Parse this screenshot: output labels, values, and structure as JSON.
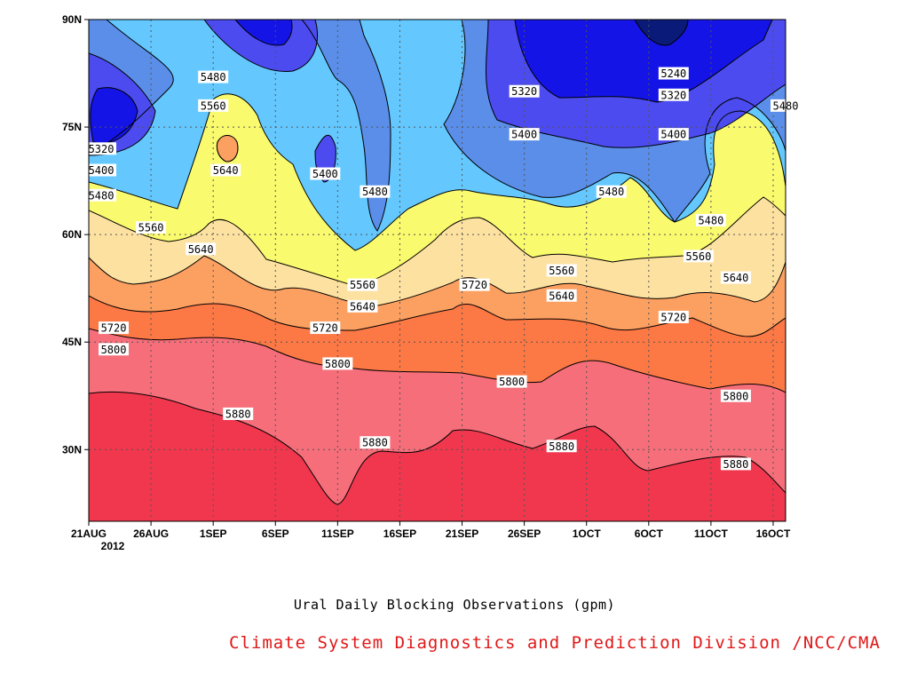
{
  "chart_data": {
    "type": "contour",
    "title": "Ural Daily Blocking Observations (gpm)",
    "credit": "Climate System Diagnostics and Prediction Division /NCC/CMA",
    "xlabel": "",
    "ylabel": "",
    "x_ticks": [
      "21AUG",
      "26AUG",
      "1SEP",
      "6SEP",
      "11SEP",
      "16SEP",
      "21SEP",
      "26SEP",
      "1OCT",
      "6OCT",
      "11OCT",
      "16OCT"
    ],
    "x_year": "2012",
    "x_range": [
      "2012-08-21",
      "2012-10-16"
    ],
    "y_ticks": [
      "30N",
      "45N",
      "60N",
      "75N",
      "90N"
    ],
    "y_range": [
      20,
      90
    ],
    "grid": true,
    "levels": [
      5240,
      5320,
      5400,
      5480,
      5560,
      5640,
      5720,
      5800,
      5880
    ],
    "fill_colors": [
      "#0a1a78",
      "#1414e6",
      "#4b4bef",
      "#5a8ee8",
      "#64c8ff",
      "#fafa6e",
      "#fde1a0",
      "#fca062",
      "#fc7845",
      "#f56e7a",
      "#f0374e"
    ],
    "contour_labels": [
      {
        "text": "5480",
        "date": "2012-08-31",
        "lat": 82
      },
      {
        "text": "5560",
        "date": "2012-08-31",
        "lat": 78
      },
      {
        "text": "5640",
        "date": "2012-09-01",
        "lat": 69
      },
      {
        "text": "5320",
        "date": "2012-08-22",
        "lat": 72
      },
      {
        "text": "5400",
        "date": "2012-08-22",
        "lat": 69
      },
      {
        "text": "5480",
        "date": "2012-08-22",
        "lat": 65.5
      },
      {
        "text": "5560",
        "date": "2012-08-26",
        "lat": 61
      },
      {
        "text": "5640",
        "date": "2012-08-30",
        "lat": 58
      },
      {
        "text": "5720",
        "date": "2012-08-23",
        "lat": 47
      },
      {
        "text": "5800",
        "date": "2012-08-23",
        "lat": 44
      },
      {
        "text": "5880",
        "date": "2012-09-02",
        "lat": 35
      },
      {
        "text": "5400",
        "date": "2012-09-09",
        "lat": 68.5
      },
      {
        "text": "5480",
        "date": "2012-09-13",
        "lat": 66
      },
      {
        "text": "5560",
        "date": "2012-09-12",
        "lat": 53
      },
      {
        "text": "5640",
        "date": "2012-09-12",
        "lat": 50
      },
      {
        "text": "5720",
        "date": "2012-09-09",
        "lat": 47
      },
      {
        "text": "5800",
        "date": "2012-09-10",
        "lat": 42
      },
      {
        "text": "5880",
        "date": "2012-09-13",
        "lat": 31
      },
      {
        "text": "5720",
        "date": "2012-09-21",
        "lat": 53
      },
      {
        "text": "5800",
        "date": "2012-09-24",
        "lat": 39.5
      },
      {
        "text": "5880",
        "date": "2012-09-28",
        "lat": 30.5
      },
      {
        "text": "5560",
        "date": "2012-09-28",
        "lat": 55
      },
      {
        "text": "5640",
        "date": "2012-09-28",
        "lat": 51.5
      },
      {
        "text": "5320",
        "date": "2012-09-25",
        "lat": 80
      },
      {
        "text": "5400",
        "date": "2012-09-25",
        "lat": 74
      },
      {
        "text": "5480",
        "date": "2012-10-02",
        "lat": 66
      },
      {
        "text": "5240",
        "date": "2012-10-07",
        "lat": 82.5
      },
      {
        "text": "5320",
        "date": "2012-10-07",
        "lat": 79.5
      },
      {
        "text": "5400",
        "date": "2012-10-07",
        "lat": 74
      },
      {
        "text": "5480",
        "date": "2012-10-10",
        "lat": 62
      },
      {
        "text": "5560",
        "date": "2012-10-09",
        "lat": 57
      },
      {
        "text": "5640",
        "date": "2012-10-12",
        "lat": 54
      },
      {
        "text": "5720",
        "date": "2012-10-07",
        "lat": 48.5
      },
      {
        "text": "5800",
        "date": "2012-10-12",
        "lat": 37.5
      },
      {
        "text": "5880",
        "date": "2012-10-12",
        "lat": 28
      },
      {
        "text": "5480",
        "date": "2012-10-16",
        "lat": 78
      }
    ]
  }
}
